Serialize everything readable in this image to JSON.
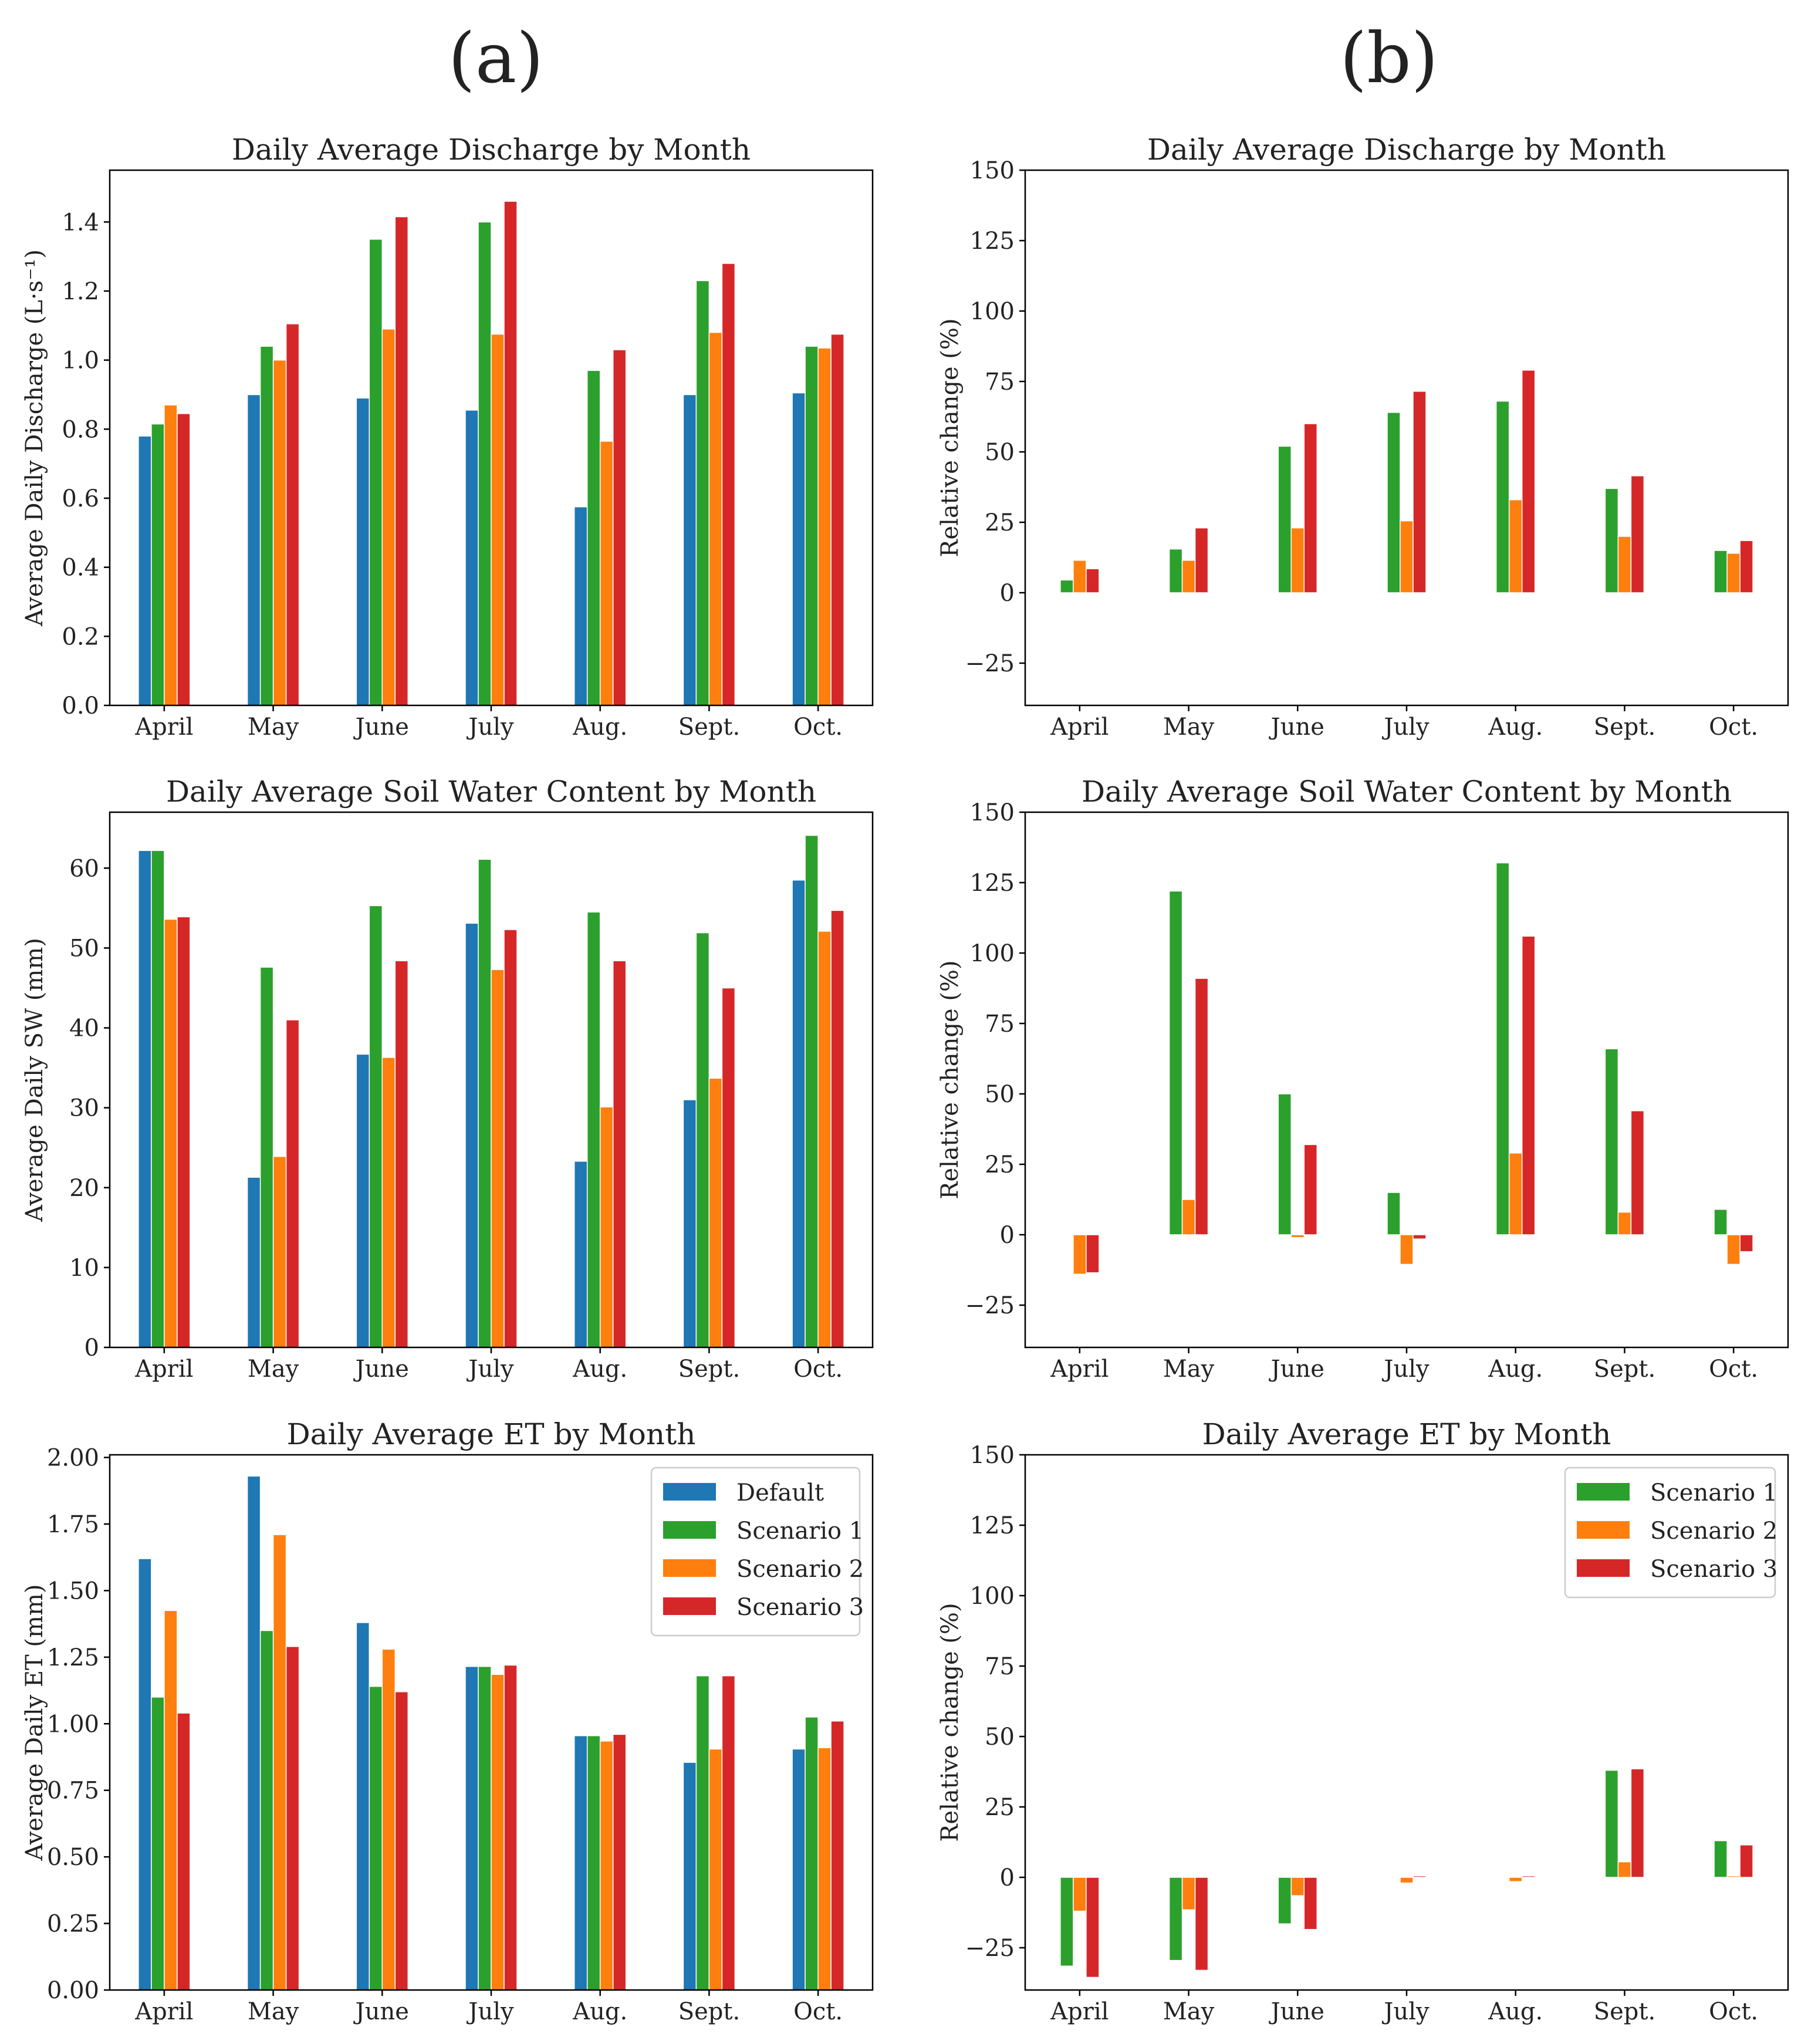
{
  "panels": [
    {
      "label": "(a)",
      "column": 0
    },
    {
      "label": "(b)",
      "column": 1
    }
  ],
  "colors": {
    "Default": "#1f77b4",
    "Scenario 1": "#2ca02c",
    "Scenario 2": "#ff7f0e",
    "Scenario 3": "#d62728"
  },
  "chart_data": [
    {
      "id": "a-discharge",
      "type": "bar",
      "panel": "(a)",
      "row": 0,
      "col": 0,
      "title": "Daily Average Discharge by Month",
      "xlabel": "",
      "ylabel": "Average Daily Discharge (L·s⁻¹)",
      "categories": [
        "April",
        "May",
        "June",
        "July",
        "Aug.",
        "Sept.",
        "Oct."
      ],
      "ylim": [
        0,
        1.55
      ],
      "yticks": [
        0.0,
        0.2,
        0.4,
        0.6,
        0.8,
        1.0,
        1.2,
        1.4
      ],
      "ytick_labels": [
        "0.0",
        "0.2",
        "0.4",
        "0.6",
        "0.8",
        "1.0",
        "1.2",
        "1.4"
      ],
      "series": [
        {
          "name": "Default",
          "values": [
            0.78,
            0.9,
            0.89,
            0.855,
            0.575,
            0.9,
            0.905
          ]
        },
        {
          "name": "Scenario 1",
          "values": [
            0.815,
            1.04,
            1.35,
            1.4,
            0.97,
            1.23,
            1.04
          ]
        },
        {
          "name": "Scenario 2",
          "values": [
            0.87,
            1.0,
            1.09,
            1.075,
            0.765,
            1.08,
            1.035
          ]
        },
        {
          "name": "Scenario 3",
          "values": [
            0.845,
            1.105,
            1.415,
            1.46,
            1.03,
            1.28,
            1.075
          ]
        }
      ],
      "legend": null
    },
    {
      "id": "a-soilwater",
      "type": "bar",
      "panel": "(a)",
      "row": 1,
      "col": 0,
      "title": "Daily Average Soil Water Content by Month",
      "xlabel": "",
      "ylabel": "Average Daily SW (mm)",
      "categories": [
        "April",
        "May",
        "June",
        "July",
        "Aug.",
        "Sept.",
        "Oct."
      ],
      "ylim": [
        0,
        67
      ],
      "yticks": [
        0,
        10,
        20,
        30,
        40,
        50,
        60
      ],
      "ytick_labels": [
        "0",
        "10",
        "20",
        "30",
        "40",
        "50",
        "60"
      ],
      "series": [
        {
          "name": "Default",
          "values": [
            62.2,
            21.3,
            36.7,
            53.1,
            23.3,
            31.0,
            58.5
          ]
        },
        {
          "name": "Scenario 1",
          "values": [
            62.2,
            47.6,
            55.3,
            61.1,
            54.5,
            51.9,
            64.1
          ]
        },
        {
          "name": "Scenario 2",
          "values": [
            53.6,
            23.9,
            36.3,
            47.3,
            30.1,
            33.7,
            52.1
          ]
        },
        {
          "name": "Scenario 3",
          "values": [
            53.9,
            41.0,
            48.4,
            52.3,
            48.4,
            45.0,
            54.7
          ]
        }
      ],
      "legend": null
    },
    {
      "id": "a-et",
      "type": "bar",
      "panel": "(a)",
      "row": 2,
      "col": 0,
      "title": "Daily Average ET by Month",
      "xlabel": "",
      "ylabel": "Average Daily ET (mm)",
      "categories": [
        "April",
        "May",
        "June",
        "July",
        "Aug.",
        "Sept.",
        "Oct."
      ],
      "ylim": [
        0,
        2.01
      ],
      "yticks": [
        0.0,
        0.25,
        0.5,
        0.75,
        1.0,
        1.25,
        1.5,
        1.75,
        2.0
      ],
      "ytick_labels": [
        "0.00",
        "0.25",
        "0.50",
        "0.75",
        "1.00",
        "1.25",
        "1.50",
        "1.75",
        "2.00"
      ],
      "series": [
        {
          "name": "Default",
          "values": [
            1.62,
            1.93,
            1.38,
            1.215,
            0.955,
            0.855,
            0.905
          ]
        },
        {
          "name": "Scenario 1",
          "values": [
            1.1,
            1.35,
            1.14,
            1.215,
            0.955,
            1.18,
            1.025
          ]
        },
        {
          "name": "Scenario 2",
          "values": [
            1.425,
            1.71,
            1.28,
            1.185,
            0.935,
            0.905,
            0.91
          ]
        },
        {
          "name": "Scenario 3",
          "values": [
            1.04,
            1.29,
            1.12,
            1.22,
            0.96,
            1.18,
            1.01
          ]
        }
      ],
      "legend": {
        "position": "top-right",
        "entries": [
          "Default",
          "Scenario 1",
          "Scenario 2",
          "Scenario 3"
        ]
      }
    },
    {
      "id": "b-discharge",
      "type": "bar",
      "panel": "(b)",
      "row": 0,
      "col": 1,
      "title": "Daily Average Discharge by Month",
      "xlabel": "",
      "ylabel": "Relative change (%)",
      "categories": [
        "April",
        "May",
        "June",
        "July",
        "Aug.",
        "Sept.",
        "Oct."
      ],
      "ylim": [
        -40,
        150
      ],
      "yticks": [
        -25,
        0,
        25,
        50,
        75,
        100,
        125,
        150
      ],
      "ytick_labels": [
        "−25",
        "0",
        "25",
        "50",
        "75",
        "100",
        "125",
        "150"
      ],
      "series": [
        {
          "name": "Scenario 1",
          "values": [
            4.5,
            15.5,
            52,
            64,
            68,
            37,
            15
          ]
        },
        {
          "name": "Scenario 2",
          "values": [
            11.5,
            11.5,
            23,
            25.5,
            33,
            20,
            14
          ]
        },
        {
          "name": "Scenario 3",
          "values": [
            8.5,
            23,
            60,
            71.5,
            79,
            41.5,
            18.5
          ]
        }
      ],
      "legend": null
    },
    {
      "id": "b-soilwater",
      "type": "bar",
      "panel": "(b)",
      "row": 1,
      "col": 1,
      "title": "Daily Average Soil Water Content by Month",
      "xlabel": "",
      "ylabel": "Relative change (%)",
      "categories": [
        "April",
        "May",
        "June",
        "July",
        "Aug.",
        "Sept.",
        "Oct."
      ],
      "ylim": [
        -40,
        150
      ],
      "yticks": [
        -25,
        0,
        25,
        50,
        75,
        100,
        125,
        150
      ],
      "ytick_labels": [
        "−25",
        "0",
        "25",
        "50",
        "75",
        "100",
        "125",
        "150"
      ],
      "series": [
        {
          "name": "Scenario 1",
          "values": [
            0,
            122,
            50,
            15,
            132,
            66,
            9
          ]
        },
        {
          "name": "Scenario 2",
          "values": [
            -14,
            12.5,
            -1,
            -10.5,
            29,
            8,
            -10.5
          ]
        },
        {
          "name": "Scenario 3",
          "values": [
            -13.5,
            91,
            32,
            -1.5,
            106,
            44,
            -6
          ]
        }
      ],
      "legend": null
    },
    {
      "id": "b-et",
      "type": "bar",
      "panel": "(b)",
      "row": 2,
      "col": 1,
      "title": "Daily Average ET by Month",
      "xlabel": "",
      "ylabel": "Relative change (%)",
      "categories": [
        "April",
        "May",
        "June",
        "July",
        "Aug.",
        "Sept.",
        "Oct."
      ],
      "ylim": [
        -40,
        150
      ],
      "yticks": [
        -25,
        0,
        25,
        50,
        75,
        100,
        125,
        150
      ],
      "ytick_labels": [
        "−25",
        "0",
        "25",
        "50",
        "75",
        "100",
        "125",
        "150"
      ],
      "series": [
        {
          "name": "Scenario 1",
          "values": [
            -31.5,
            -29.5,
            -16.5,
            0,
            0,
            38,
            13
          ]
        },
        {
          "name": "Scenario 2",
          "values": [
            -12,
            -11.5,
            -6.5,
            -2,
            -1.5,
            5.5,
            0.5
          ]
        },
        {
          "name": "Scenario 3",
          "values": [
            -35.5,
            -33,
            -18.5,
            0.5,
            0.5,
            38.5,
            11.5
          ]
        }
      ],
      "legend": {
        "position": "top-right",
        "entries": [
          "Scenario 1",
          "Scenario 2",
          "Scenario 3"
        ]
      }
    }
  ]
}
